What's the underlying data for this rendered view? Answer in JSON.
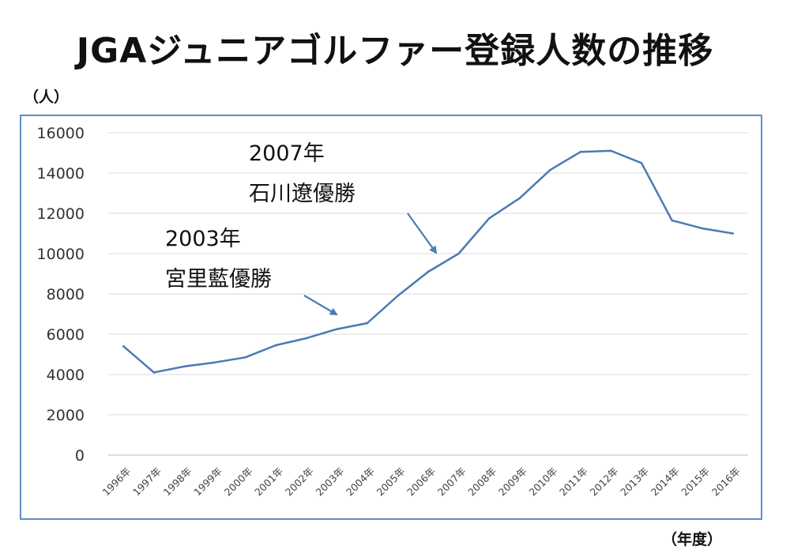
{
  "chart_data": {
    "type": "line",
    "title": "JGAジュニアゴルファー登録人数の推移",
    "ylabel": "（人）",
    "xlabel": "（年度）",
    "ylim": [
      0,
      16000
    ],
    "yticks": [
      0,
      2000,
      4000,
      6000,
      8000,
      10000,
      12000,
      14000,
      16000
    ],
    "grid": true,
    "categories": [
      "1996年",
      "1997年",
      "1998年",
      "1999年",
      "2000年",
      "2001年",
      "2002年",
      "2003年",
      "2004年",
      "2005年",
      "2006年",
      "2007年",
      "2008年",
      "2009年",
      "2010年",
      "2011年",
      "2012年",
      "2013年",
      "2014年",
      "2015年",
      "2016年"
    ],
    "series": [
      {
        "name": "登録人数",
        "color": "#4a7ab7",
        "values": [
          5400,
          4100,
          4400,
          4600,
          4850,
          5450,
          5800,
          6250,
          6550,
          7900,
          9100,
          10000,
          11750,
          12750,
          14150,
          15050,
          15100,
          14500,
          11650,
          11250,
          11000
        ]
      }
    ],
    "annotations": [
      {
        "line1": "2003年",
        "line2": "宮里藍優勝",
        "target_category": "2003年"
      },
      {
        "line1": "2007年",
        "line2": "石川遼優勝",
        "target_category": "2007年"
      }
    ]
  }
}
